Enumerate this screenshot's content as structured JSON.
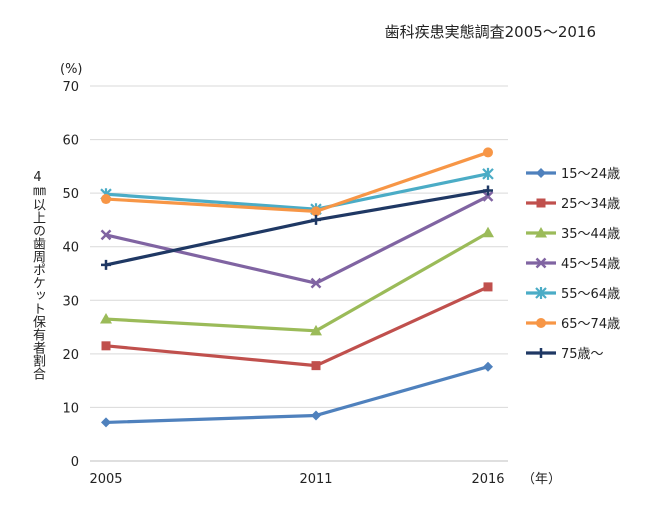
{
  "chart_data": {
    "type": "line",
    "source_note": "歯科疾患実態調査2005～2016",
    "y_unit": "(%)",
    "x_unit": "（年）",
    "ylabel": "4㎜以上の歯周ポケット保有者割合",
    "ylim": [
      0,
      70
    ],
    "yticks": [
      0,
      10,
      20,
      30,
      40,
      50,
      60,
      70
    ],
    "categories": [
      "2005",
      "2011",
      "2016"
    ],
    "grid": true,
    "legend_position": "right",
    "series": [
      {
        "name": "15～24歳",
        "values": [
          7.2,
          8.5,
          17.6
        ],
        "color": "#4f81bd",
        "marker": "diamond"
      },
      {
        "name": "25～34歳",
        "values": [
          21.5,
          17.8,
          32.5
        ],
        "color": "#c0504d",
        "marker": "square"
      },
      {
        "name": "35～44歳",
        "values": [
          26.5,
          24.3,
          42.6
        ],
        "color": "#9bbb59",
        "marker": "triangle"
      },
      {
        "name": "45～54歳",
        "values": [
          42.2,
          33.2,
          49.4
        ],
        "color": "#8064a2",
        "marker": "x"
      },
      {
        "name": "55～64歳",
        "values": [
          49.8,
          47.0,
          53.6
        ],
        "color": "#4bacc6",
        "marker": "star"
      },
      {
        "name": "65～74歳",
        "values": [
          48.9,
          46.6,
          57.6
        ],
        "color": "#f79646",
        "marker": "circle"
      },
      {
        "name": "75歳～",
        "values": [
          36.6,
          45.0,
          50.5
        ],
        "color": "#1f3864",
        "marker": "plus"
      }
    ]
  }
}
